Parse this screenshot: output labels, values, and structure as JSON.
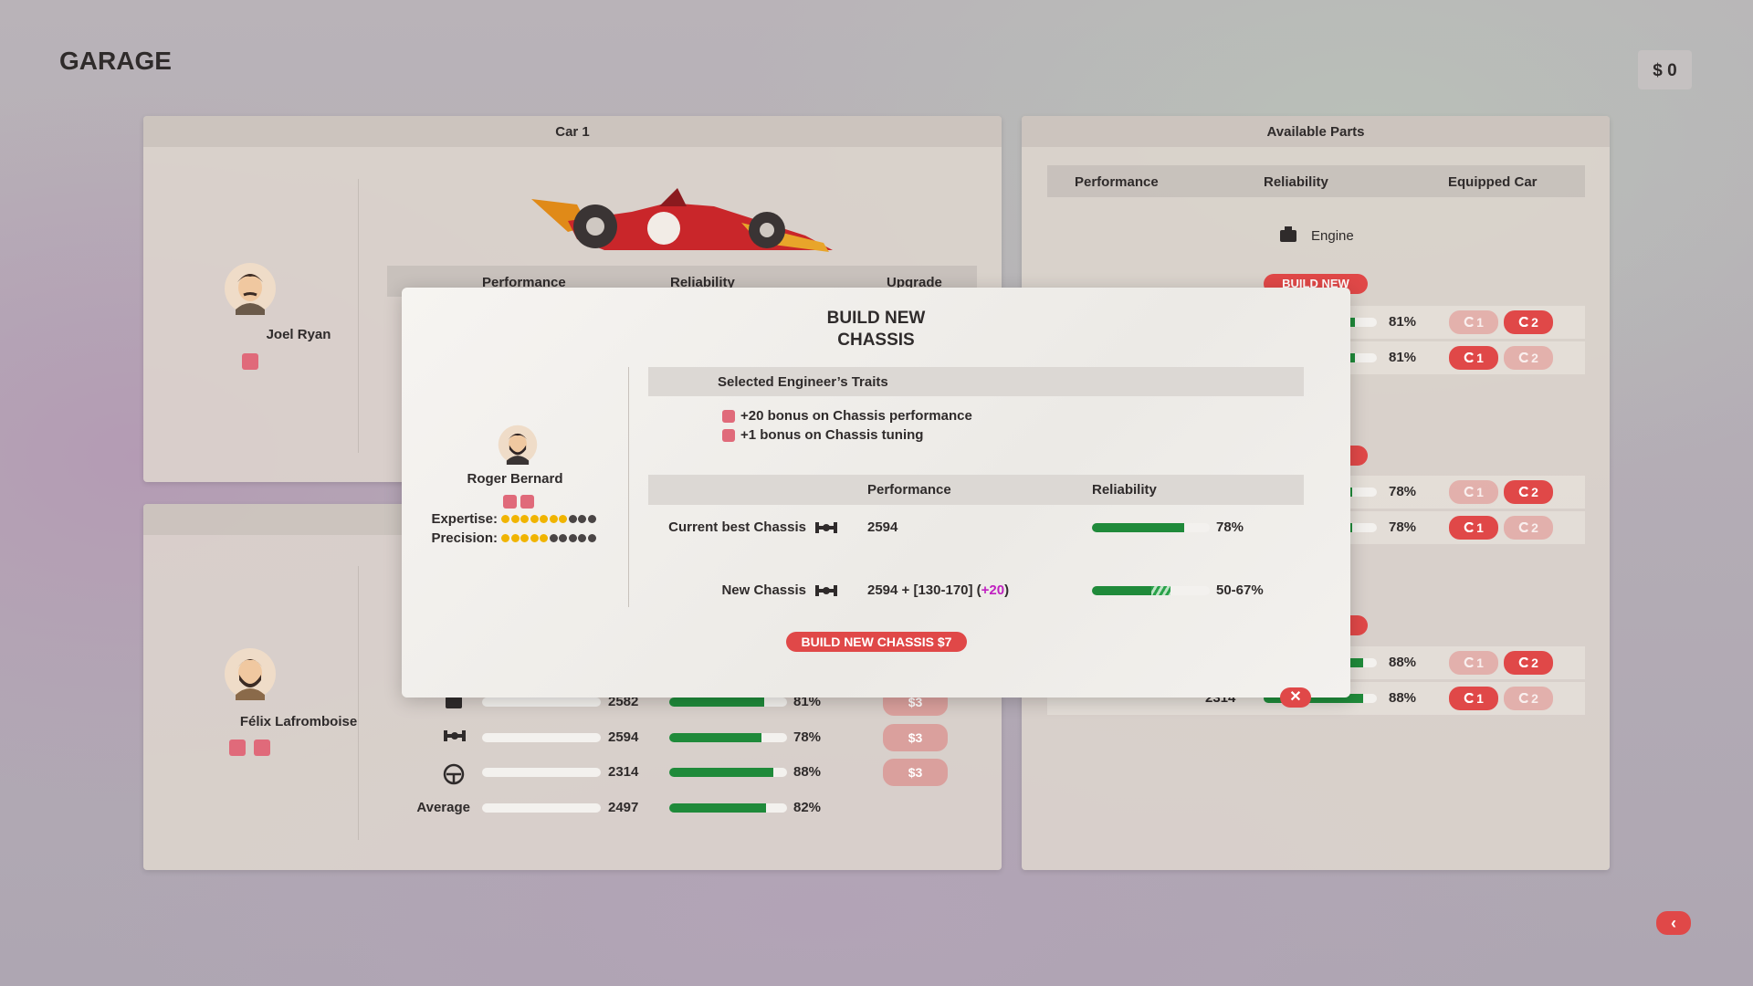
{
  "header": {
    "title": "GARAGE",
    "money": "$ 0"
  },
  "car1": {
    "title": "Car 1",
    "driver": "Joel Ryan",
    "columns": [
      "Performance",
      "Reliability",
      "Upgrade"
    ]
  },
  "car2": {
    "driver": "Félix Lafromboise",
    "rows": [
      {
        "performance": "2582",
        "reliability": {
          "value": 81,
          "label": "81%"
        },
        "upgrade": "$3"
      },
      {
        "performance": "2594",
        "reliability": {
          "value": 78,
          "label": "78%"
        },
        "upgrade": "$3"
      },
      {
        "performance": "2314",
        "reliability": {
          "value": 88,
          "label": "88%"
        },
        "upgrade": "$3"
      }
    ],
    "average": {
      "label": "Average",
      "performance": "2497",
      "reliability": {
        "value": 82,
        "label": "82%"
      }
    }
  },
  "parts": {
    "title": "Available Parts",
    "columns": [
      "Performance",
      "Reliability",
      "Equipped Car"
    ],
    "engine": "Engine",
    "build": "BUILD NEW",
    "rows": [
      {
        "reliability": {
          "value": 81,
          "label": "81%"
        },
        "car1": "1",
        "car2": "2"
      },
      {
        "reliability": {
          "value": 81,
          "label": "81%"
        },
        "car1": "1",
        "car2": "2"
      },
      {
        "reliability": {
          "value": 78,
          "label": "78%"
        },
        "car1": "1",
        "car2": "2"
      },
      {
        "reliability": {
          "value": 78,
          "label": "78%"
        },
        "car1": "1",
        "car2": "2"
      },
      {
        "reliability": {
          "value": 88,
          "label": "88%"
        },
        "car1": "1",
        "car2": "2"
      },
      {
        "performance": "2314",
        "reliability": {
          "value": 88,
          "label": "88%"
        },
        "car1": "1",
        "car2": "2"
      }
    ]
  },
  "modal": {
    "title": [
      "BUILD NEW",
      "CHASSIS"
    ],
    "engineer": {
      "name": "Roger Bernard",
      "stats": [
        {
          "label": "Expertise:",
          "value": 7,
          "max": 10
        },
        {
          "label": "Precision:",
          "value": 5,
          "max": 10
        }
      ]
    },
    "traits_title": "Selected Engineer’s Traits",
    "traits": [
      "+20 bonus on Chassis performance",
      "+1 bonus on Chassis tuning"
    ],
    "columns": [
      "Performance",
      "Reliability"
    ],
    "current": {
      "label": "Current best Chassis",
      "performance": "2594",
      "reliability": {
        "value": 78,
        "label": "78%"
      }
    },
    "new": {
      "label": "New Chassis",
      "performance": [
        "2594 + [130-170] (",
        "+20",
        ")"
      ],
      "reliability": {
        "min": 50,
        "max": 67,
        "label": "50-67%"
      }
    },
    "button": "BUILD NEW CHASSIS $7"
  }
}
